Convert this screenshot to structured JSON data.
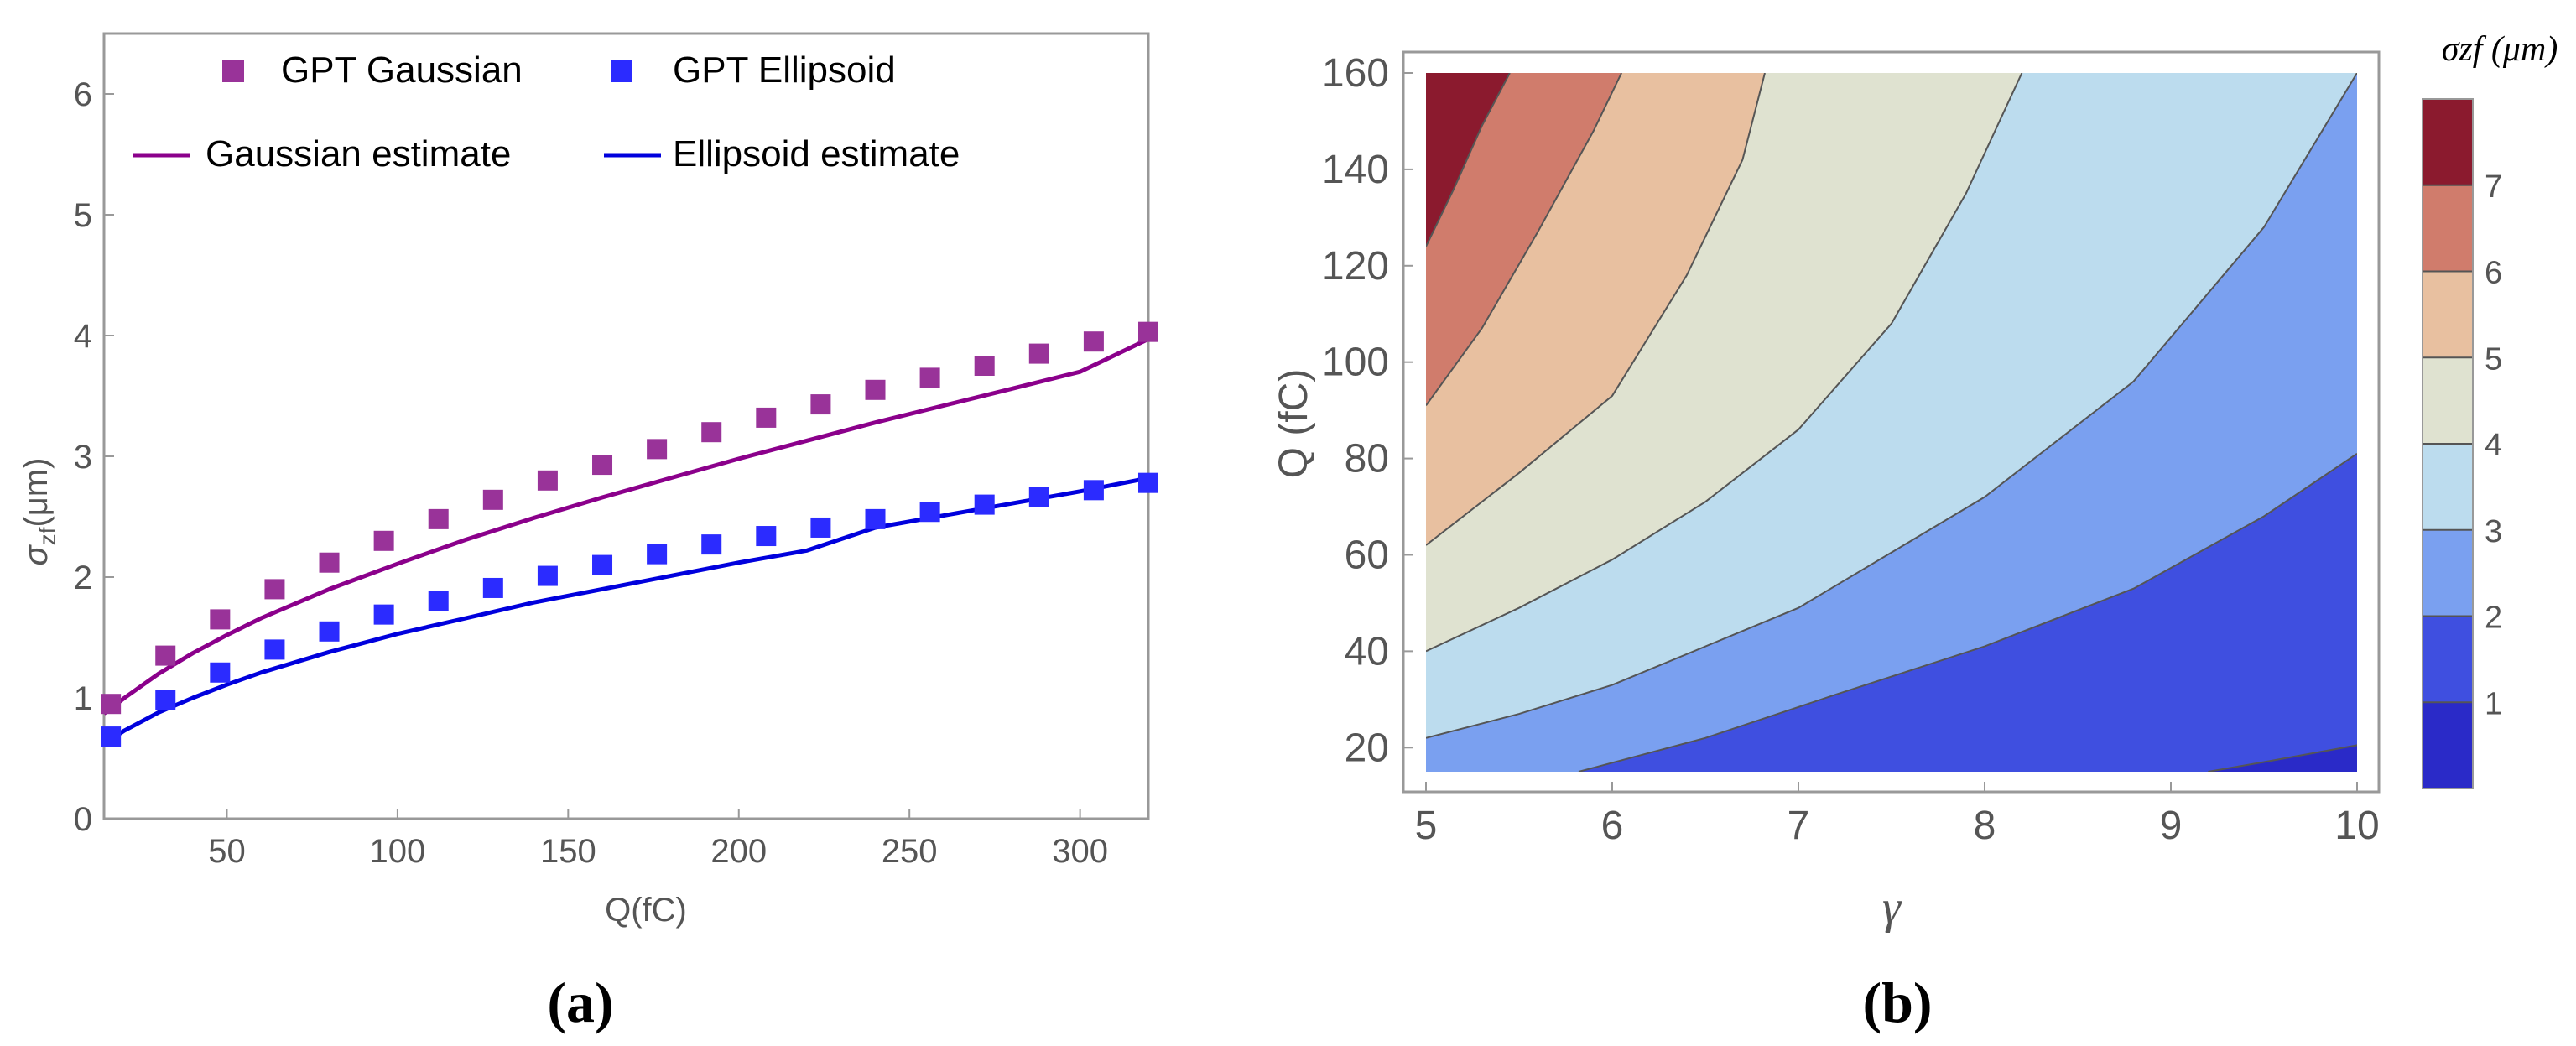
{
  "panels": {
    "a_label": "(a)",
    "b_label": "(b)"
  },
  "colors": {
    "gaussian": "#993399",
    "ellipsoid": "#2b2bff",
    "gaussian_line": "#8b008b",
    "ellipsoid_line": "#0000dd",
    "axis": "#999999",
    "tick_text": "#555555",
    "contour_line": "#555555"
  },
  "chart_data": [
    {
      "type": "scatter",
      "panel": "a",
      "title": "",
      "xlabel": "Q(fC)",
      "ylabel_main": "σ",
      "ylabel_sub": "zf",
      "ylabel_unit": "(μm)",
      "xlim": [
        14,
        320
      ],
      "ylim": [
        0,
        6.5
      ],
      "xticks": [
        50,
        100,
        150,
        200,
        250,
        300
      ],
      "yticks": [
        0,
        1,
        2,
        3,
        4,
        5,
        6
      ],
      "legend": [
        {
          "label": "GPT Gaussian",
          "kind": "marker",
          "series": "gaussian"
        },
        {
          "label": "GPT Ellipsoid",
          "kind": "marker",
          "series": "ellipsoid"
        },
        {
          "label": "Gaussian estimate",
          "kind": "line",
          "series": "gaussian_line"
        },
        {
          "label": "Ellipsoid estimate",
          "kind": "line",
          "series": "ellipsoid_line"
        }
      ],
      "legend_position": "top",
      "series": [
        {
          "name": "GPT Gaussian",
          "kind": "marker",
          "x": [
            16,
            32,
            48,
            64,
            80,
            96,
            112,
            128,
            144,
            160,
            176,
            192,
            208,
            224,
            240,
            256,
            272,
            288,
            304,
            320
          ],
          "y": [
            0.95,
            1.35,
            1.65,
            1.9,
            2.12,
            2.3,
            2.48,
            2.64,
            2.8,
            2.93,
            3.06,
            3.2,
            3.32,
            3.43,
            3.55,
            3.65,
            3.75,
            3.85,
            3.95,
            4.03
          ]
        },
        {
          "name": "GPT Ellipsoid",
          "kind": "marker",
          "x": [
            16,
            32,
            48,
            64,
            80,
            96,
            112,
            128,
            144,
            160,
            176,
            192,
            208,
            224,
            240,
            256,
            272,
            288,
            304,
            320
          ],
          "y": [
            0.68,
            0.98,
            1.21,
            1.4,
            1.55,
            1.69,
            1.8,
            1.91,
            2.01,
            2.1,
            2.19,
            2.27,
            2.34,
            2.41,
            2.48,
            2.54,
            2.6,
            2.66,
            2.72,
            2.78
          ]
        },
        {
          "name": "Gaussian estimate",
          "kind": "line",
          "x": [
            14,
            20,
            30,
            40,
            50,
            60,
            80,
            100,
            120,
            140,
            160,
            180,
            200,
            220,
            240,
            260,
            280,
            300,
            320
          ],
          "y": [
            0.87,
            1.0,
            1.2,
            1.37,
            1.52,
            1.66,
            1.9,
            2.11,
            2.31,
            2.49,
            2.66,
            2.82,
            2.98,
            3.13,
            3.28,
            3.42,
            3.56,
            3.7,
            3.97
          ]
        },
        {
          "name": "Ellipsoid estimate",
          "kind": "line",
          "x": [
            14,
            20,
            30,
            40,
            50,
            60,
            80,
            100,
            120,
            140,
            160,
            180,
            200,
            220,
            240,
            260,
            280,
            300,
            320
          ],
          "y": [
            0.62,
            0.73,
            0.88,
            1.0,
            1.11,
            1.21,
            1.38,
            1.53,
            1.66,
            1.79,
            1.9,
            2.01,
            2.12,
            2.22,
            2.41,
            2.51,
            2.61,
            2.71,
            2.82
          ]
        }
      ]
    },
    {
      "type": "heatmap",
      "subtype": "contour",
      "panel": "b",
      "title": "",
      "xlabel": "γ",
      "ylabel": "Q (fC)",
      "xlim": [
        5,
        10
      ],
      "ylim": [
        15,
        160
      ],
      "xticks": [
        5,
        6,
        7,
        8,
        9,
        10
      ],
      "yticks": [
        20,
        40,
        60,
        80,
        100,
        120,
        140,
        160
      ],
      "colorbar_title": "σzf (μm)",
      "colorbar_range": [
        0,
        8
      ],
      "colorbar_ticks": [
        1,
        2,
        3,
        4,
        5,
        6,
        7
      ],
      "levels": [
        {
          "range": [
            0,
            1
          ],
          "color": "#2a2ac8"
        },
        {
          "range": [
            1,
            2
          ],
          "color": "#3f4fe0"
        },
        {
          "range": [
            2,
            3
          ],
          "color": "#7aa0f0"
        },
        {
          "range": [
            3,
            4
          ],
          "color": "#bcdcee"
        },
        {
          "range": [
            4,
            5
          ],
          "color": "#dfe2d0"
        },
        {
          "range": [
            5,
            6
          ],
          "color": "#e8c0a0"
        },
        {
          "range": [
            6,
            7
          ],
          "color": "#d07c6c"
        },
        {
          "range": [
            7,
            8
          ],
          "color": "#8b1a2e"
        }
      ],
      "contours": [
        {
          "level": 1,
          "points": [
            [
              9.2,
              15
            ],
            [
              9.5,
              17
            ],
            [
              10,
              20.5
            ]
          ]
        },
        {
          "level": 2,
          "points": [
            [
              5.82,
              15
            ],
            [
              6.5,
              22
            ],
            [
              7.2,
              31
            ],
            [
              8,
              41
            ],
            [
              8.8,
              53
            ],
            [
              9.5,
              68
            ],
            [
              10,
              81
            ]
          ]
        },
        {
          "level": 3,
          "points": [
            [
              5,
              22
            ],
            [
              5.5,
              27
            ],
            [
              6,
              33
            ],
            [
              7,
              49
            ],
            [
              8,
              72
            ],
            [
              8.8,
              96
            ],
            [
              9.5,
              128
            ],
            [
              10,
              160
            ]
          ]
        },
        {
          "level": 4,
          "points": [
            [
              5,
              40
            ],
            [
              5.5,
              49
            ],
            [
              6,
              59
            ],
            [
              6.5,
              71
            ],
            [
              7,
              86
            ],
            [
              7.5,
              108
            ],
            [
              7.9,
              135
            ],
            [
              8.2,
              160
            ]
          ]
        },
        {
          "level": 5,
          "points": [
            [
              5,
              62
            ],
            [
              5.5,
              77
            ],
            [
              6,
              93
            ],
            [
              6.4,
              118
            ],
            [
              6.7,
              142
            ],
            [
              6.82,
              160
            ]
          ]
        },
        {
          "level": 6,
          "points": [
            [
              5,
              91
            ],
            [
              5.3,
              107
            ],
            [
              5.6,
              127
            ],
            [
              5.9,
              148
            ],
            [
              6.05,
              160
            ]
          ]
        },
        {
          "level": 7,
          "points": [
            [
              5,
              124
            ],
            [
              5.15,
              136
            ],
            [
              5.3,
              149
            ],
            [
              5.45,
              160
            ]
          ]
        }
      ]
    }
  ]
}
